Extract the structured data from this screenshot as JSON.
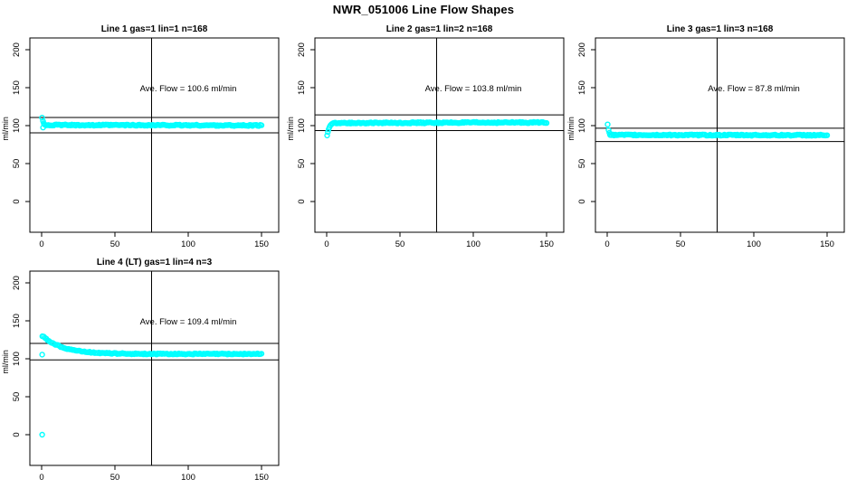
{
  "figure": {
    "title": "NWR_051006  Line Flow Shapes"
  },
  "colors": {
    "marker": "#00ffff",
    "axis": "#000000",
    "background": "#ffffff"
  },
  "chart_data": [
    {
      "type": "scatter",
      "title": "Line 1 gas=1 lin=1 n=168",
      "ylabel": "ml/min",
      "x_ticks": [
        0,
        50,
        100,
        150
      ],
      "y_ticks": [
        0,
        50,
        100,
        150,
        200
      ],
      "xlim": [
        0,
        150
      ],
      "ylim": [
        0,
        200
      ],
      "n": 168,
      "ave_flow": 100.6,
      "annotation": "Ave. Flow =  100.6  ml/min",
      "annotation_xy": [
        100,
        145
      ],
      "vline_x": 75,
      "ref_lines": [
        110.7,
        90.5
      ],
      "series": {
        "transient": [
          [
            0.3,
            110.5
          ],
          [
            0.9,
            106.0
          ],
          [
            1.0,
            97.5
          ],
          [
            1.5,
            103.0
          ]
        ],
        "band_start_x": 2.0,
        "settle": 100.8,
        "drift": -0.6,
        "noise": 0.8,
        "extra_points": []
      }
    },
    {
      "type": "scatter",
      "title": "Line 2 gas=1 lin=2 n=168",
      "ylabel": "ml/min",
      "x_ticks": [
        0,
        50,
        100,
        150
      ],
      "y_ticks": [
        0,
        50,
        100,
        150,
        200
      ],
      "xlim": [
        0,
        150
      ],
      "ylim": [
        0,
        200
      ],
      "n": 168,
      "ave_flow": 103.8,
      "annotation": "Ave. Flow =  103.8  ml/min",
      "annotation_xy": [
        100,
        145
      ],
      "vline_x": 75,
      "ref_lines": [
        114.2,
        93.4
      ],
      "series": {
        "transient": [
          [
            0.3,
            87.0
          ],
          [
            0.8,
            91.5
          ],
          [
            1.3,
            95.0
          ],
          [
            1.9,
            98.0
          ],
          [
            2.6,
            100.5
          ],
          [
            3.4,
            102.0
          ],
          [
            4.2,
            103.0
          ]
        ],
        "band_start_x": 5.0,
        "settle": 103.4,
        "drift": 0.8,
        "noise": 0.8,
        "extra_points": []
      }
    },
    {
      "type": "scatter",
      "title": "Line 3 gas=1 lin=3 n=168",
      "ylabel": "ml/min",
      "x_ticks": [
        0,
        50,
        100,
        150
      ],
      "y_ticks": [
        0,
        50,
        100,
        150,
        200
      ],
      "xlim": [
        0,
        150
      ],
      "ylim": [
        0,
        200
      ],
      "n": 168,
      "ave_flow": 87.8,
      "annotation": "Ave. Flow =  87.8  ml/min",
      "annotation_xy": [
        100,
        145
      ],
      "vline_x": 75,
      "ref_lines": [
        96.6,
        79.0
      ],
      "series": {
        "transient": [
          [
            0.3,
            101.5
          ],
          [
            0.9,
            94.0
          ],
          [
            1.5,
            90.5
          ]
        ],
        "band_start_x": 2.0,
        "settle": 87.7,
        "drift": -0.3,
        "noise": 0.8,
        "extra_points": []
      }
    },
    {
      "type": "scatter",
      "title": "Line 4 (LT) gas=1 lin=4 n=3",
      "ylabel": "ml/min",
      "x_ticks": [
        0,
        50,
        100,
        150
      ],
      "y_ticks": [
        0,
        50,
        100,
        150,
        200
      ],
      "xlim": [
        0,
        150
      ],
      "ylim": [
        0,
        200
      ],
      "n": 3,
      "ave_flow": 109.4,
      "annotation": "Ave. Flow =  109.4  ml/min",
      "annotation_xy": [
        100,
        145
      ],
      "vline_x": 75,
      "ref_lines": [
        120.3,
        98.5
      ],
      "series": {
        "transient": [],
        "band_start_x": 0.5,
        "settle": 106.3,
        "decay": {
          "start": 131.0,
          "tau": 14.0
        },
        "drift": 0.0,
        "noise": 0.7,
        "extra_points": [
          [
            0.4,
            0.0
          ],
          [
            0.4,
            105.5
          ]
        ]
      }
    }
  ]
}
